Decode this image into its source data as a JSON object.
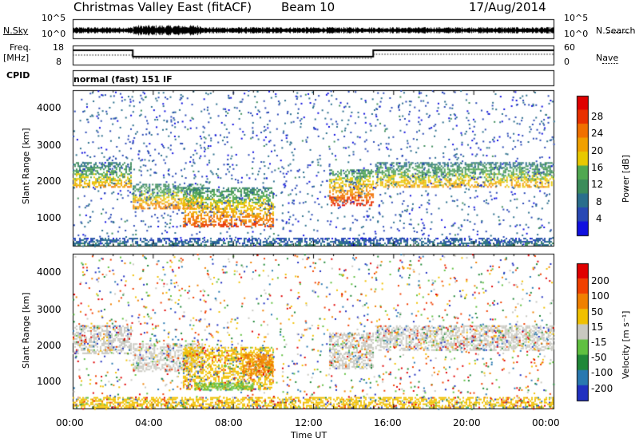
{
  "header": {
    "station": "Christmas Valley East (fitACF)",
    "beam": "Beam 10",
    "date": "17/Aug/2014"
  },
  "top_panels": {
    "nsky_label": "N.Sky",
    "nsky_ticks": [
      "10^5",
      "10^0"
    ],
    "nsearch_label": "N.Search",
    "nsearch_ticks": [
      "10^5",
      "10^0"
    ],
    "freq_label_1": "Freq.",
    "freq_label_2": "[MHz]",
    "freq_ticks": [
      "18",
      "8"
    ],
    "nave_label": "Nave",
    "nave_ticks": [
      "60",
      "0"
    ],
    "cpid_label": "CPID",
    "cpid_value": "normal (fast) 151 IF"
  },
  "chart_data": [
    {
      "type": "heatmap",
      "name": "power",
      "ylabel": "Slant Range [km]",
      "yticks": [
        "4000",
        "3000",
        "2000",
        "1000"
      ],
      "colorbar_label": "Power [dB]",
      "colorbar_ticks": [
        "28",
        "24",
        "20",
        "16",
        "12",
        "8",
        "4"
      ],
      "colorbar_colors": [
        "#1010e0",
        "#2848b4",
        "#2a6e8c",
        "#3c8c5a",
        "#50a850",
        "#e8c800",
        "#f0a000",
        "#f07000",
        "#e83000",
        "#e00000"
      ],
      "ylim": [
        180,
        4500
      ],
      "features": [
        {
          "t0": 0.0,
          "t1": 2.9,
          "r0": 1800,
          "r1": 2500,
          "power": 16
        },
        {
          "t0": 3.0,
          "t1": 6.5,
          "r0": 1200,
          "r1": 1900,
          "power": 18
        },
        {
          "t0": 5.5,
          "t1": 10.0,
          "r0": 700,
          "r1": 1800,
          "power": 20
        },
        {
          "t0": 12.8,
          "t1": 15.0,
          "r0": 1300,
          "r1": 2300,
          "power": 22
        },
        {
          "t0": 15.1,
          "t1": 24.0,
          "r0": 1800,
          "r1": 2500,
          "power": 16
        },
        {
          "t0": 0.0,
          "t1": 24.0,
          "r0": 200,
          "r1": 400,
          "power": 6
        }
      ]
    },
    {
      "type": "heatmap",
      "name": "velocity",
      "ylabel": "Slant Range [km]",
      "xlabel": "Time UT",
      "xticks": [
        "00:00",
        "04:00",
        "08:00",
        "12:00",
        "16:00",
        "20:00",
        "00:00"
      ],
      "yticks": [
        "4000",
        "3000",
        "2000",
        "1000"
      ],
      "colorbar_label": "Velocity [m s⁻¹]",
      "colorbar_ticks": [
        "200",
        "100",
        "50",
        "15",
        "-15",
        "-50",
        "-100",
        "-200"
      ],
      "colorbar_colors": [
        "#2030c0",
        "#2878b0",
        "#208838",
        "#60c040",
        "#c8c8c0",
        "#f0c000",
        "#f08000",
        "#f04000",
        "#e00000"
      ],
      "ylim": [
        180,
        4500
      ]
    }
  ]
}
